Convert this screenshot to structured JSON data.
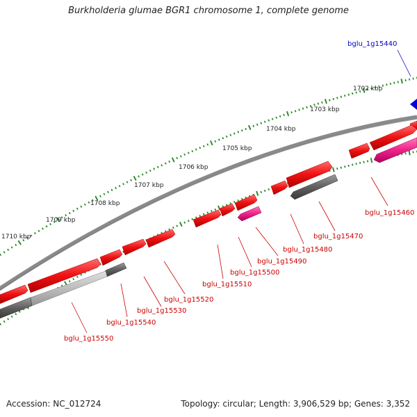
{
  "title": "Burkholderia glumae BGR1 chromosome 1, complete genome",
  "accession": "Accession: NC_012724",
  "summary": "Topology: circular; Length: 3,906,529 bp; Genes: 3,352",
  "colors": {
    "forward_gene": "#ee1111",
    "reverse_gene": "#606060",
    "rna_gene": "#ee2288",
    "highlight_gene": "#0000dd",
    "backbone": "#7a7a7a",
    "tick": "#2e8b2e",
    "label_red": "#cc0000",
    "label_blue": "#0000cc"
  },
  "scale_labels": [
    "1702 kbp",
    "1703 kbp",
    "1704 kbp",
    "1705 kbp",
    "1706 kbp",
    "1707 kbp",
    "1708 kbp",
    "1709 kbp",
    "1710 kbp"
  ],
  "gene_labels": [
    {
      "name": "bglu_1g15440",
      "color": "blue"
    },
    {
      "name": "bglu_1g15460",
      "color": "red"
    },
    {
      "name": "bglu_1g15470",
      "color": "red"
    },
    {
      "name": "bglu_1g15480",
      "color": "red"
    },
    {
      "name": "bglu_1g15490",
      "color": "red"
    },
    {
      "name": "bglu_1g15500",
      "color": "red"
    },
    {
      "name": "bglu_1g15510",
      "color": "red"
    },
    {
      "name": "bglu_1g15520",
      "color": "red"
    },
    {
      "name": "bglu_1g15530",
      "color": "red"
    },
    {
      "name": "bglu_1g15540",
      "color": "red"
    },
    {
      "name": "bglu_1g15550",
      "color": "red"
    }
  ]
}
